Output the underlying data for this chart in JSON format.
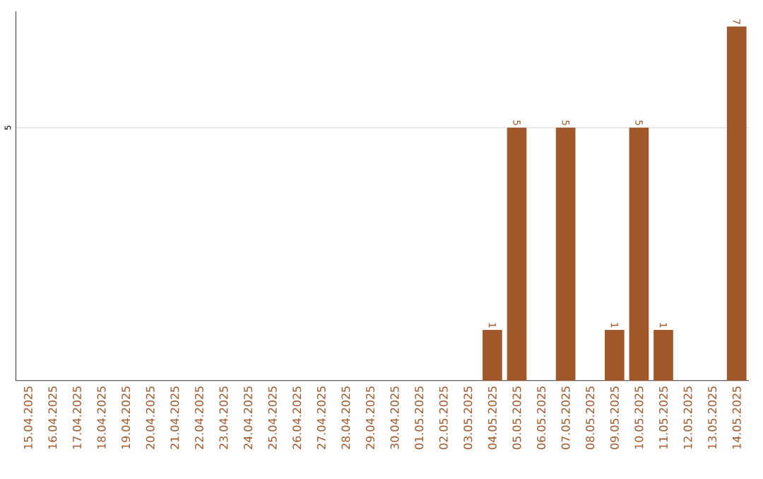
{
  "chart_data": {
    "type": "bar",
    "categories": [
      "15.04.2025",
      "16.04.2025",
      "17.04.2025",
      "18.04.2025",
      "19.04.2025",
      "20.04.2025",
      "21.04.2025",
      "22.04.2025",
      "23.04.2025",
      "24.04.2025",
      "25.04.2025",
      "26.04.2025",
      "27.04.2025",
      "28.04.2025",
      "29.04.2025",
      "30.04.2025",
      "01.05.2025",
      "02.05.2025",
      "03.05.2025",
      "04.05.2025",
      "05.05.2025",
      "06.05.2025",
      "07.05.2025",
      "08.05.2025",
      "09.05.2025",
      "10.05.2025",
      "11.05.2025",
      "12.05.2025",
      "13.05.2025",
      "14.05.2025"
    ],
    "values": [
      null,
      null,
      null,
      null,
      null,
      null,
      null,
      null,
      null,
      null,
      null,
      null,
      null,
      null,
      null,
      null,
      null,
      null,
      null,
      1,
      5,
      null,
      5,
      null,
      1,
      5,
      1,
      null,
      null,
      7
    ],
    "color": "#a0582a",
    "ylim": [
      0,
      7.3
    ],
    "yticks": [
      5
    ],
    "grid": "y",
    "data_labels": true
  }
}
